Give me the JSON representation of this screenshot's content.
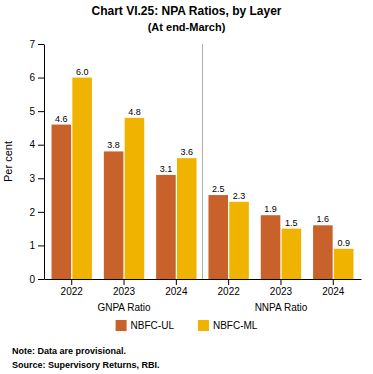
{
  "chart_data": {
    "type": "bar",
    "title": "Chart VI.25: NPA Ratios, by Layer",
    "subtitle": "(At end-March)",
    "y_label": "Per cent",
    "categories": [
      "2022",
      "2023",
      "2024",
      "2022",
      "2023",
      "2024"
    ],
    "category_groups": [
      "GNPA Ratio",
      "NNPA Ratio"
    ],
    "series": [
      {
        "name": "NBFC-UL",
        "color": "#c8612a",
        "values": [
          4.6,
          3.8,
          3.1,
          2.5,
          1.9,
          1.6
        ],
        "value_labels": [
          "4.6",
          "3.8",
          "3.1",
          "2.5",
          "1.9",
          "1.6"
        ]
      },
      {
        "name": "NBFC-ML",
        "color": "#f0b400",
        "values": [
          6.0,
          4.8,
          3.6,
          2.3,
          1.5,
          0.9
        ],
        "value_labels": [
          "6.0",
          "4.8",
          "3.6",
          "2.3",
          "1.5",
          "0.9"
        ]
      }
    ],
    "ylim": [
      0,
      7
    ],
    "yticks": [
      0,
      1,
      2,
      3,
      4,
      5,
      6,
      7
    ],
    "grid": false,
    "data_labels": true,
    "legend": "bottom",
    "note": "Note: Data are provisional.",
    "source": "Source: Supervisory Returns, RBI."
  }
}
